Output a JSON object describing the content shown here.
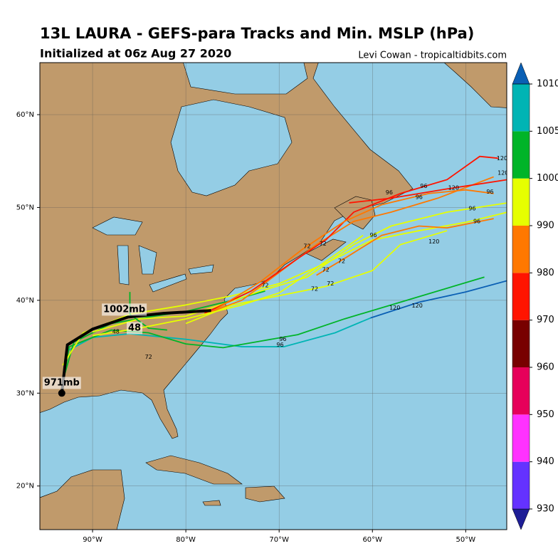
{
  "header": {
    "title": "13L LAURA - GEFS-para Tracks and Min. MSLP (hPa)",
    "subtitle": "Initialized at 06z Aug 27 2020",
    "credit": "Levi Cowan - tropicaltidbits.com"
  },
  "map": {
    "xlim": [
      -95.65,
      -45.6
    ],
    "ylim": [
      15.3,
      65.6
    ],
    "xticks": [
      {
        "value": -90,
        "label": "90°W"
      },
      {
        "value": -80,
        "label": "80°W"
      },
      {
        "value": -70,
        "label": "70°W"
      },
      {
        "value": -60,
        "label": "60°W"
      },
      {
        "value": -50,
        "label": "50°W"
      }
    ],
    "yticks": [
      {
        "value": 20,
        "label": "20°N"
      },
      {
        "value": 30,
        "label": "30°N"
      },
      {
        "value": 40,
        "label": "40°N"
      },
      {
        "value": 50,
        "label": "50°N"
      },
      {
        "value": 60,
        "label": "60°N"
      }
    ],
    "tracks": [
      {
        "color": "#00b4b4",
        "lon": [
          -93.3,
          -92.8,
          -90,
          -86,
          -80,
          -74,
          -69.5,
          -64,
          -60.2
        ],
        "lat": [
          30,
          34.5,
          36,
          36.4,
          35.8,
          35.0,
          35.0,
          36.5,
          38.1
        ],
        "labels": [
          {
            "text": "96",
            "lon": -69.9,
            "lat": 35.2
          }
        ]
      },
      {
        "color": "#0a5fb4",
        "lon": [
          -60.2,
          -55,
          -50,
          -45.6
        ],
        "lat": [
          38.1,
          39.8,
          40.9,
          42.1
        ],
        "labels": [
          {
            "text": "120",
            "lon": -57.6,
            "lat": 39.2
          }
        ]
      },
      {
        "color": "#00b428",
        "lon": [
          -93.2,
          -92.5,
          -88,
          -84,
          -80,
          -76,
          -72,
          -68,
          -63,
          -57,
          -48
        ],
        "lat": [
          31,
          35,
          36.8,
          36.5,
          35.3,
          34.9,
          35.6,
          36.3,
          38,
          39.8,
          42.5
        ],
        "labels": [
          {
            "text": "72",
            "lon": -84,
            "lat": 33.9
          },
          {
            "text": "96",
            "lon": -69.6,
            "lat": 35.8
          },
          {
            "text": "120",
            "lon": -55.2,
            "lat": 39.4
          }
        ]
      },
      {
        "color": "#00b428",
        "lon": [
          -93,
          -92,
          -88,
          -84,
          -80,
          -75,
          -71.5
        ],
        "lat": [
          32,
          35.5,
          37.5,
          38.2,
          38.8,
          40,
          41
        ],
        "labels": [
          {
            "text": "48",
            "lon": -87.5,
            "lat": 36.6
          }
        ]
      },
      {
        "color": "#e6ff00",
        "lon": [
          -93.2,
          -91,
          -86,
          -80,
          -75,
          -70,
          -65,
          -60,
          -55,
          -50,
          -45.5
        ],
        "lat": [
          33,
          36.5,
          38.5,
          39.5,
          40.5,
          41.8,
          44,
          46.5,
          47.5,
          48.4,
          49.5
        ],
        "labels": [
          {
            "text": "72",
            "lon": -71.5,
            "lat": 41.6
          },
          {
            "text": "96",
            "lon": -48.8,
            "lat": 48.5
          }
        ]
      },
      {
        "color": "#e6ff00",
        "lon": [
          -90,
          -85,
          -80,
          -76,
          -72,
          -67,
          -62,
          -58,
          -52,
          -45.5
        ],
        "lat": [
          36.6,
          38,
          38.3,
          39.6,
          41,
          42.5,
          46,
          48,
          49.5,
          50.5
        ],
        "labels": [
          {
            "text": "72",
            "lon": -65,
            "lat": 43.3
          },
          {
            "text": "96",
            "lon": -49.3,
            "lat": 49.9
          }
        ]
      },
      {
        "color": "#ff7800",
        "lon": [
          -78,
          -74,
          -70,
          -66,
          -62,
          -58,
          -53,
          -47
        ],
        "lat": [
          38.5,
          40,
          43,
          46,
          48.5,
          49.5,
          51,
          53.3
        ],
        "labels": [
          {
            "text": "72",
            "lon": -67,
            "lat": 45.8
          },
          {
            "text": "96",
            "lon": -55,
            "lat": 51.1
          },
          {
            "text": "120",
            "lon": -46,
            "lat": 53.7
          }
        ]
      },
      {
        "color": "#ff1400",
        "lon": [
          -78,
          -73,
          -68,
          -65,
          -62,
          -57,
          -52,
          -48.5,
          -46.5
        ],
        "lat": [
          38.6,
          41,
          44.5,
          46.5,
          49.5,
          51.5,
          53,
          55.5,
          55.3
        ],
        "labels": [
          {
            "text": "72",
            "lon": -65.3,
            "lat": 46.1
          },
          {
            "text": "96",
            "lon": -58.2,
            "lat": 51.6
          },
          {
            "text": "120",
            "lon": -46.1,
            "lat": 55.3
          }
        ]
      },
      {
        "color": "#ff7800",
        "lon": [
          -77,
          -72,
          -67.5,
          -63,
          -59,
          -54,
          -50,
          -47
        ],
        "lat": [
          38.9,
          42,
          45.5,
          48.5,
          50.3,
          51.5,
          51.9,
          51.5
        ],
        "labels": [
          {
            "text": "96",
            "lon": -54.5,
            "lat": 52.3
          },
          {
            "text": "120",
            "lon": -51.3,
            "lat": 52.1
          }
        ]
      },
      {
        "color": "#ff1400",
        "lon": [
          -62.5,
          -58,
          -52,
          -45.5
        ],
        "lat": [
          50.5,
          51,
          52,
          53
        ],
        "labels": [
          {
            "text": "96",
            "lon": -47.4,
            "lat": 51.7
          }
        ]
      },
      {
        "color": "#ff7800",
        "lon": [
          -66,
          -63,
          -59,
          -55,
          -52,
          -47
        ],
        "lat": [
          42.7,
          44.5,
          47,
          48,
          47.8,
          48.8
        ],
        "labels": [
          {
            "text": "120",
            "lon": -53.4,
            "lat": 46.3
          }
        ]
      },
      {
        "color": "#e6ff00",
        "lon": [
          -80,
          -75,
          -70,
          -65,
          -60,
          -57,
          -52
        ],
        "lat": [
          37.5,
          39.5,
          40.5,
          41.5,
          43.2,
          46,
          47.5
        ],
        "labels": [
          {
            "text": "72",
            "lon": -66.2,
            "lat": 41.2
          },
          {
            "text": "72",
            "lon": -64.5,
            "lat": 41.8
          },
          {
            "text": "96",
            "lon": -59.9,
            "lat": 47.0
          }
        ]
      },
      {
        "color": "#00b428",
        "lon": [
          -86,
          -86,
          -84,
          -82
        ],
        "lat": [
          40.9,
          38.5,
          37,
          36.8
        ],
        "labels": []
      },
      {
        "color": "#e6ff00",
        "lon": [
          -90,
          -85,
          -80,
          -74,
          -70,
          -66,
          -61
        ],
        "lat": [
          36.2,
          37,
          38,
          39.5,
          40.8,
          43.5,
          47
        ],
        "labels": [
          {
            "text": "72",
            "lon": -63.3,
            "lat": 44.2
          }
        ]
      }
    ],
    "mean_track": {
      "color": "#000000",
      "lon": [
        -93.3,
        -92.7,
        -90,
        -86.2,
        -82.4,
        -77.3
      ],
      "lat": [
        30.0,
        35.2,
        36.9,
        38.2,
        38.6,
        38.9
      ]
    },
    "annotations": [
      {
        "text": "1002mb",
        "lon": -86.6,
        "lat": 39.0
      },
      {
        "text": "48",
        "lon": -85.5,
        "lat": 37.0
      },
      {
        "text": "971mb",
        "lon": -93.3,
        "lat": 31.1
      }
    ]
  },
  "colorbar": {
    "levels": [
      930,
      940,
      950,
      960,
      970,
      980,
      990,
      1000,
      1005,
      1010
    ],
    "colors": [
      "#1e1e96",
      "#6432ff",
      "#ff32ff",
      "#e6005a",
      "#780000",
      "#ff1400",
      "#ff7800",
      "#e6ff00",
      "#00b428",
      "#00b4b4",
      "#0a5fb4"
    ]
  }
}
